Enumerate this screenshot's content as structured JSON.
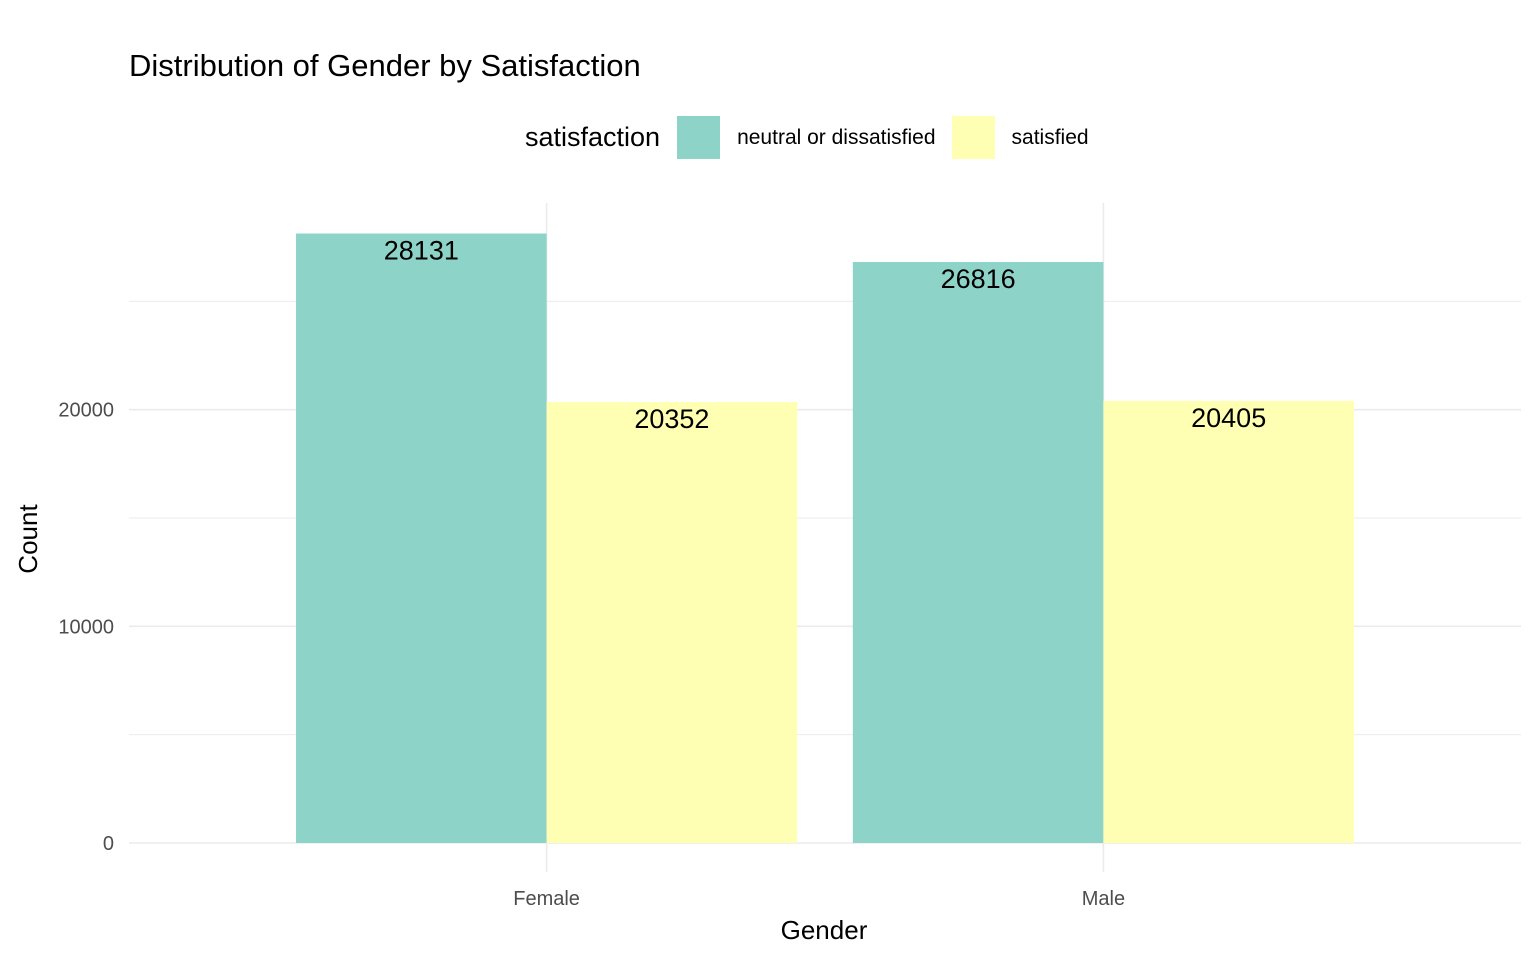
{
  "chart_data": {
    "type": "bar",
    "title": "Distribution of Gender by Satisfaction",
    "xlabel": "Gender",
    "ylabel": "Count",
    "categories": [
      "Female",
      "Male"
    ],
    "series": [
      {
        "name": "neutral or dissatisfied",
        "values": [
          28131,
          26816
        ],
        "color": "#8DD3C7"
      },
      {
        "name": "satisfied",
        "values": [
          20352,
          20405
        ],
        "color": "#FFFFB3"
      }
    ],
    "legend": {
      "title": "satisfaction",
      "position": "top"
    },
    "yticks": [
      0,
      10000,
      20000
    ],
    "ylim": [
      0,
      29540
    ],
    "grid": true,
    "data_labels": true
  }
}
